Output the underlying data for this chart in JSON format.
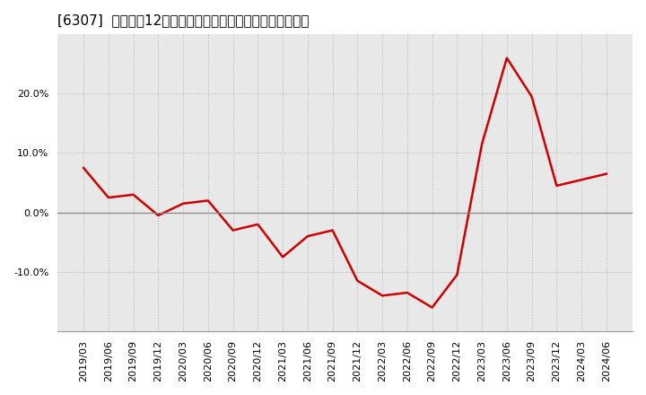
{
  "title": "[6307]  売上高の12か月移動合計の対前年同期増減率の推移",
  "x_labels": [
    "2019/03",
    "2019/06",
    "2019/09",
    "2019/12",
    "2020/03",
    "2020/06",
    "2020/09",
    "2020/12",
    "2021/03",
    "2021/06",
    "2021/09",
    "2021/12",
    "2022/03",
    "2022/06",
    "2022/09",
    "2022/12",
    "2023/03",
    "2023/06",
    "2023/09",
    "2023/12",
    "2024/03",
    "2024/06"
  ],
  "values": [
    7.5,
    2.5,
    3.0,
    -0.5,
    1.5,
    2.0,
    -3.0,
    -2.0,
    -7.5,
    -4.0,
    -3.0,
    -11.5,
    -14.0,
    -13.5,
    -16.0,
    -10.5,
    11.5,
    26.0,
    19.5,
    4.5,
    5.5,
    6.5
  ],
  "line_color": "#cc0000",
  "line_width": 1.8,
  "background_color": "#ffffff",
  "plot_bg_color": "#e8e8e8",
  "grid_color": "#aaaaaa",
  "yticks": [
    -10.0,
    0.0,
    10.0,
    20.0
  ],
  "ylim": [
    -20,
    30
  ],
  "title_fontsize": 11,
  "tick_fontsize": 8,
  "zero_line_color": "#888888"
}
